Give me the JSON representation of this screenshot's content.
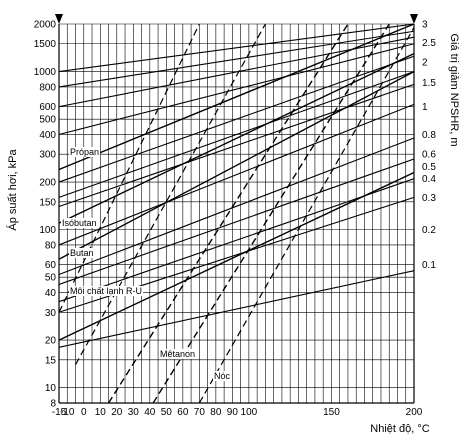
{
  "chart_data": {
    "type": "line",
    "title": "",
    "xlabel": "Nhiệt độ, °C",
    "ylabel": "Áp suất hơi, kPa",
    "y2label": "Giá trị giảm NPSHR, m",
    "xlim": [
      -15,
      200
    ],
    "ylim": [
      8,
      2000
    ],
    "yscale": "log",
    "x_ticks": [
      -15,
      -10,
      0,
      10,
      20,
      30,
      40,
      50,
      60,
      70,
      80,
      90,
      100,
      150,
      200
    ],
    "x_tick_labels": [
      "-15",
      "-10",
      "0",
      "10",
      "20",
      "30",
      "40",
      "50",
      "60",
      "70",
      "80",
      "90",
      "100",
      "150",
      "200"
    ],
    "y_ticks": [
      8,
      10,
      15,
      20,
      30,
      40,
      50,
      60,
      80,
      100,
      150,
      200,
      300,
      400,
      500,
      600,
      800,
      1000,
      1500,
      2000
    ],
    "y_tick_labels": [
      "8",
      "10",
      "15",
      "20",
      "30",
      "40",
      "50",
      "60",
      "80",
      "100",
      "150",
      "200",
      "300",
      "400",
      "500",
      "600",
      "800",
      "1000",
      "1500",
      "2000"
    ],
    "y2_ticks": [
      0.1,
      0.2,
      0.3,
      0.4,
      0.5,
      0.6,
      0.8,
      1,
      1.5,
      2,
      2.5,
      3
    ],
    "y2_tick_labels": [
      "0.1",
      "0.2",
      "0.3",
      "0.4",
      "0.5",
      "0.6",
      "0.8",
      "1",
      "1.5",
      "2",
      "2.5",
      "3"
    ],
    "y2_tick_y": [
      60,
      100,
      160,
      210,
      250,
      300,
      400,
      600,
      850,
      1150,
      1530,
      2000
    ],
    "grid": true,
    "series": [
      {
        "name": "Própan",
        "style": "solid",
        "x": [
          -15,
          200
        ],
        "y": [
          240,
          2000
        ]
      },
      {
        "name": "Isóbutan",
        "style": "solid",
        "x": [
          -15,
          200
        ],
        "y": [
          110,
          1300
        ]
      },
      {
        "name": "Butan",
        "style": "solid",
        "x": [
          -15,
          200
        ],
        "y": [
          65,
          1000
        ]
      },
      {
        "name": "Môi chất lạnh R-U",
        "style": "solid",
        "x": [
          -15,
          200
        ],
        "y": [
          20,
          230
        ]
      },
      {
        "name": "Mêtanon",
        "style": "dashed",
        "x": [
          15,
          160
        ],
        "y": [
          8,
          2000
        ]
      },
      {
        "name": "Nóc",
        "style": "dashed",
        "x": [
          42,
          185
        ],
        "y": [
          8,
          2000
        ]
      }
    ],
    "unlabeled_series": [
      {
        "style": "dashed",
        "x": [
          -15,
          70
        ],
        "y": [
          30,
          2000
        ]
      },
      {
        "style": "dashed",
        "x": [
          -5,
          110
        ],
        "y": [
          14,
          2000
        ]
      },
      {
        "style": "dashed",
        "x": [
          70,
          200
        ],
        "y": [
          8,
          1900
        ]
      }
    ]
  }
}
